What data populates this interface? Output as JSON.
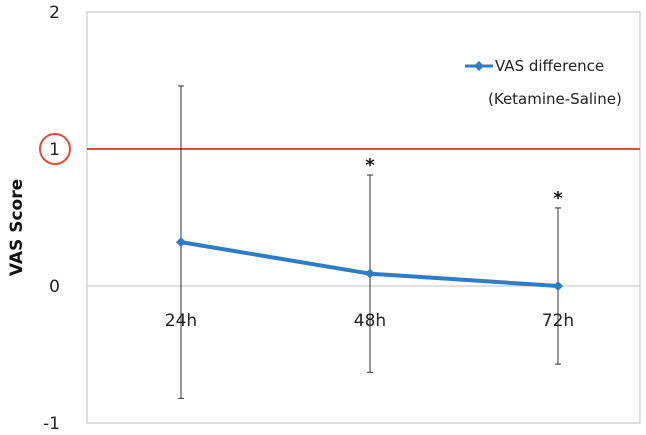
{
  "chart_data": {
    "type": "line",
    "categories": [
      "24h",
      "48h",
      "72h"
    ],
    "series": [
      {
        "name": "VAS difference",
        "name_line2": "(Ketamine-Saline)",
        "values": [
          0.32,
          0.09,
          0.0
        ],
        "error_upper": [
          1.46,
          0.81,
          0.57
        ],
        "error_lower": [
          -0.82,
          -0.63,
          -0.57
        ],
        "color": "#2e7cc7"
      }
    ],
    "significance": [
      "",
      "*",
      "*"
    ],
    "reference_line": {
      "value": 1,
      "color": "#e84a3c",
      "label": "1"
    },
    "ylabel": "VAS Score",
    "ylim": [
      -1,
      2
    ],
    "yticks": [
      "-1",
      "0",
      "1",
      "2"
    ],
    "axis_color": "#bfbfbf",
    "legend_position": "top-right"
  }
}
